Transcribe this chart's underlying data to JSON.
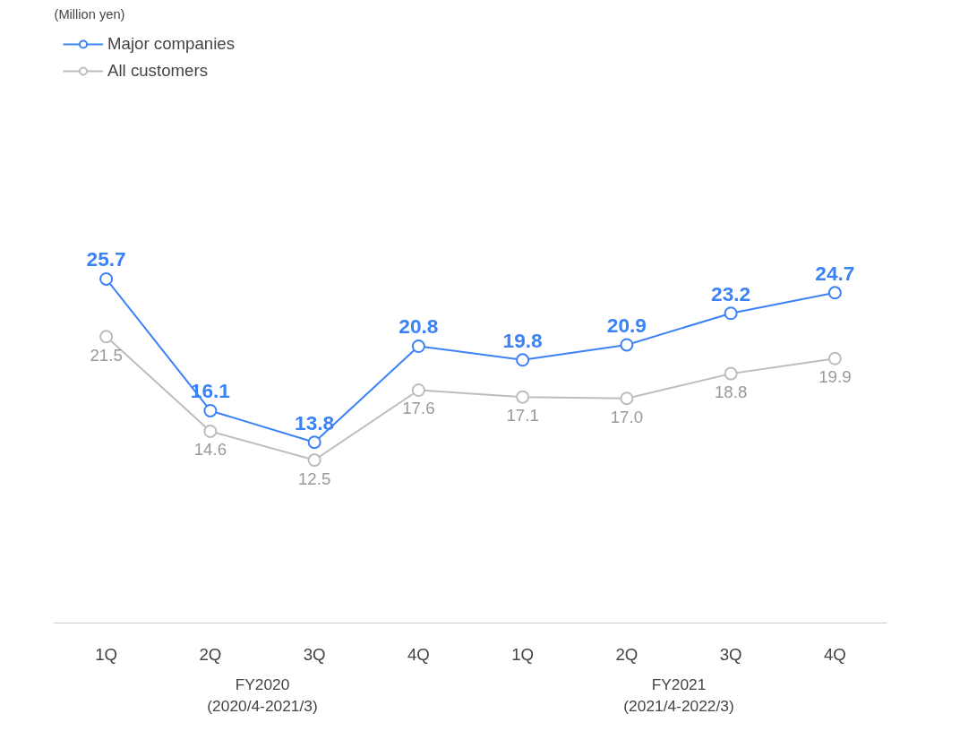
{
  "chart_data": {
    "type": "line",
    "categories": [
      "1Q",
      "2Q",
      "3Q",
      "4Q",
      "1Q",
      "2Q",
      "3Q",
      "4Q"
    ],
    "series": [
      {
        "name": "Major companies",
        "color": "#3b82f6",
        "values": [
          25.7,
          16.1,
          13.8,
          20.8,
          19.8,
          20.9,
          23.2,
          24.7
        ],
        "value_labels": [
          "25.7",
          "16.1",
          "13.8",
          "20.8",
          "19.8",
          "20.9",
          "23.2",
          "24.7"
        ]
      },
      {
        "name": "All customers",
        "color": "#bdbdbd",
        "values": [
          21.5,
          14.6,
          12.5,
          17.6,
          17.1,
          17.0,
          18.8,
          19.9
        ],
        "value_labels": [
          "21.5",
          "14.6",
          "12.5",
          "17.6",
          "17.1",
          "17.0",
          "18.8",
          "19.9"
        ]
      }
    ],
    "annotations": [
      "(Million yen)",
      "FY2020\n(2020/4-2021/3)",
      "FY2021\n(2021/4-2022/3)"
    ],
    "marker": "circle",
    "legend": "top left",
    "grid": false
  }
}
